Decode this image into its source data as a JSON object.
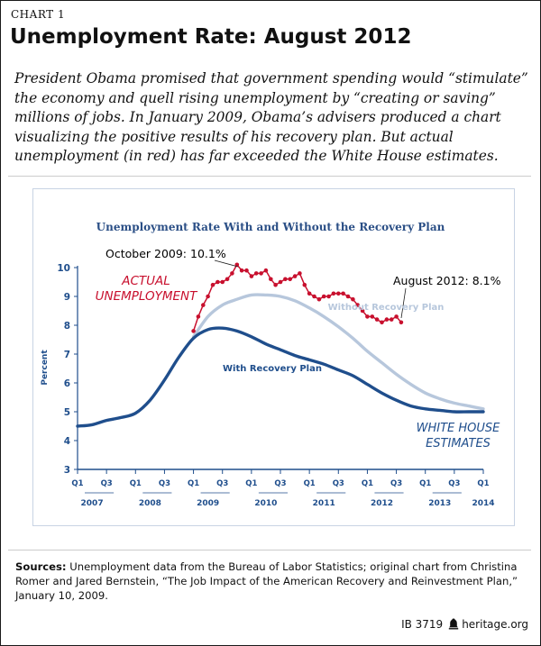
{
  "chart_label": "CHART 1",
  "page_title": "Unemployment Rate: August 2012",
  "intro_text": "President Obama promised that government spending would “stimulate” the economy and quell rising unemployment by “creating or saving” millions of jobs. In January 2009, Obama’s advisers produced a chart visualizing the positive results of his recovery plan. But actual unemployment (in red) has far exceeded the White House estimates.",
  "sources": {
    "label": "Sources:",
    "text": "Unemployment data from the Bureau of Labor Statistics; original chart from Christina Romer and Jared Bernstein, “The Job Impact of the American Recovery and Reinvestment Plan,” January 10, 2009."
  },
  "footer": {
    "id": "IB 3719",
    "site": "heritage.org"
  },
  "icons": [
    "bell-icon"
  ],
  "chart_data": {
    "type": "line",
    "title": "Unemployment Rate With and Without the Recovery Plan",
    "ylabel": "Percent",
    "ylim": [
      3,
      10
    ],
    "yticks": [
      3,
      4,
      5,
      6,
      7,
      8,
      9,
      10
    ],
    "x_quarter_ticks": [
      "Q1",
      "Q3",
      "Q1",
      "Q3",
      "Q1",
      "Q3",
      "Q1",
      "Q3",
      "Q1",
      "Q3",
      "Q1",
      "Q3",
      "Q1",
      "Q3",
      "Q1"
    ],
    "x_year_labels": [
      "2007",
      "2008",
      "2009",
      "2010",
      "2011",
      "2012",
      "2013",
      "2014"
    ],
    "xlim": [
      "2007-Q1",
      "2014-Q1"
    ],
    "grid": false,
    "colors": {
      "title": "#2b4f86",
      "axis": "#1f4e8c",
      "actual": "#c8102e",
      "with_plan": "#1f4e8c",
      "without_plan": "#b7c7dc"
    },
    "annotations": {
      "peak": "October 2009: 10.1%",
      "latest": "August 2012: 8.1%",
      "actual_label_line1": "ACTUAL",
      "actual_label_line2": "UNEMPLOYMENT",
      "estimates_line1": "WHITE HOUSE",
      "estimates_line2": "ESTIMATES"
    },
    "series": [
      {
        "name": "Without Recovery Plan",
        "x": [
          2009.0,
          2009.25,
          2009.5,
          2009.75,
          2010.0,
          2010.25,
          2010.5,
          2010.75,
          2011.0,
          2011.25,
          2011.5,
          2011.75,
          2012.0,
          2012.25,
          2012.5,
          2012.75,
          2013.0,
          2013.25,
          2013.5,
          2013.75,
          2014.0
        ],
        "values": [
          7.6,
          8.3,
          8.7,
          8.9,
          9.05,
          9.05,
          9.0,
          8.85,
          8.6,
          8.3,
          7.95,
          7.55,
          7.1,
          6.7,
          6.3,
          5.95,
          5.65,
          5.45,
          5.3,
          5.2,
          5.1
        ]
      },
      {
        "name": "With Recovery Plan",
        "x": [
          2007.0,
          2007.25,
          2007.5,
          2007.75,
          2008.0,
          2008.25,
          2008.5,
          2008.75,
          2009.0,
          2009.25,
          2009.5,
          2009.75,
          2010.0,
          2010.25,
          2010.5,
          2010.75,
          2011.0,
          2011.25,
          2011.5,
          2011.75,
          2012.0,
          2012.25,
          2012.5,
          2012.75,
          2013.0,
          2013.25,
          2013.5,
          2013.75,
          2014.0
        ],
        "values": [
          4.5,
          4.55,
          4.7,
          4.8,
          4.95,
          5.4,
          6.1,
          6.9,
          7.55,
          7.85,
          7.9,
          7.8,
          7.6,
          7.35,
          7.15,
          6.95,
          6.8,
          6.65,
          6.45,
          6.25,
          5.95,
          5.65,
          5.4,
          5.2,
          5.1,
          5.05,
          5.0,
          5.0,
          5.0
        ]
      },
      {
        "name": "Actual Unemployment",
        "x": [
          2009.0,
          2009.0833,
          2009.1667,
          2009.25,
          2009.3333,
          2009.4167,
          2009.5,
          2009.5833,
          2009.6667,
          2009.75,
          2009.8333,
          2009.9167,
          2010.0,
          2010.0833,
          2010.1667,
          2010.25,
          2010.3333,
          2010.4167,
          2010.5,
          2010.5833,
          2010.6667,
          2010.75,
          2010.8333,
          2010.9167,
          2011.0,
          2011.0833,
          2011.1667,
          2011.25,
          2011.3333,
          2011.4167,
          2011.5,
          2011.5833,
          2011.6667,
          2011.75,
          2011.8333,
          2011.9167,
          2012.0,
          2012.0833,
          2012.1667,
          2012.25,
          2012.3333,
          2012.4167,
          2012.5,
          2012.5833
        ],
        "values": [
          7.8,
          8.3,
          8.7,
          9.0,
          9.4,
          9.5,
          9.5,
          9.6,
          9.8,
          10.1,
          9.9,
          9.9,
          9.7,
          9.8,
          9.8,
          9.9,
          9.6,
          9.4,
          9.5,
          9.6,
          9.6,
          9.7,
          9.8,
          9.4,
          9.1,
          9.0,
          8.9,
          9.0,
          9.0,
          9.1,
          9.1,
          9.1,
          9.0,
          8.9,
          8.7,
          8.5,
          8.3,
          8.3,
          8.2,
          8.1,
          8.2,
          8.2,
          8.3,
          8.1
        ]
      }
    ]
  }
}
